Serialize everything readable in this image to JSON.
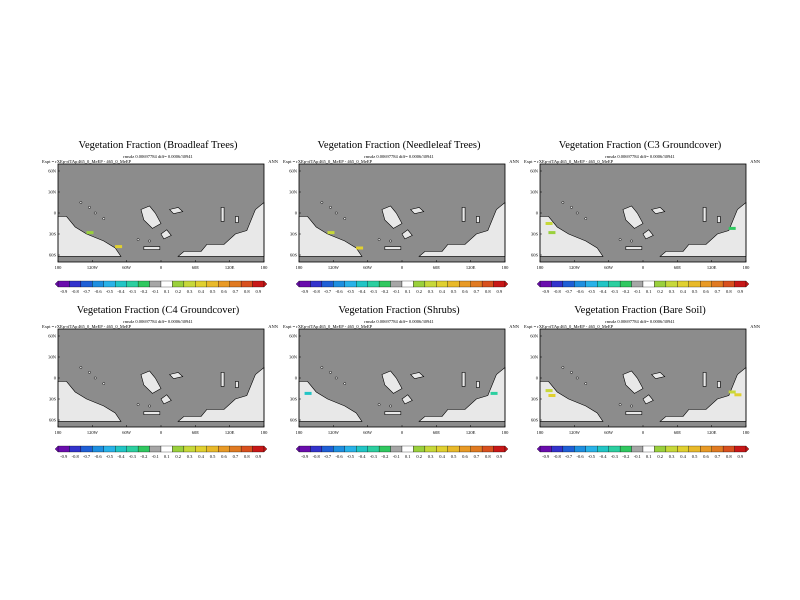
{
  "chart_data": [
    {
      "type": "heatmap",
      "title": "Vegetation Fraction (Broadleaf Trees)",
      "subtitle": "rmsdz 0.00697784 diff= 0.0006/30941",
      "expt": "Expt = rXEp-rfTAp",
      "run": "465_0_MeEP - 465_0_MeEP",
      "season": "ANN",
      "xticks": [
        "180",
        "120W",
        "60W",
        "0",
        "60E",
        "120E",
        "180"
      ],
      "yticks": [
        "60N",
        "30N",
        "0",
        "30S",
        "60S"
      ],
      "colorbar_labels": [
        "-0.9",
        "-0.8",
        "-0.7",
        "-0.6",
        "-0.5",
        "-0.4",
        "-0.3",
        "-0.2",
        "-0.1",
        "0.1",
        "0.2",
        "0.3",
        "0.4",
        "0.5",
        "0.6",
        "0.7",
        "0.8",
        "0.9"
      ],
      "highlights": [
        {
          "lon": -125,
          "lat": -28,
          "value": 0.2
        },
        {
          "lon": -75,
          "lat": -48,
          "value": 0.4
        }
      ]
    },
    {
      "type": "heatmap",
      "title": "Vegetation Fraction (Needleleaf Trees)",
      "subtitle": "rmsdz 0.00697784 diff= 0.0006/30941",
      "expt": "Expt = rXEp-rfTAp",
      "run": "465_0_MeEP - 465_0_MeEP",
      "season": "ANN",
      "xticks": [
        "180",
        "120W",
        "60W",
        "0",
        "60E",
        "120E",
        "180"
      ],
      "yticks": [
        "60N",
        "30N",
        "0",
        "30S",
        "60S"
      ],
      "colorbar_labels": [
        "-0.9",
        "-0.8",
        "-0.7",
        "-0.6",
        "-0.5",
        "-0.4",
        "-0.3",
        "-0.2",
        "-0.1",
        "0.1",
        "0.2",
        "0.3",
        "0.4",
        "0.5",
        "0.6",
        "0.7",
        "0.8",
        "0.9"
      ],
      "highlights": [
        {
          "lon": -125,
          "lat": -28,
          "value": 0.3
        },
        {
          "lon": -75,
          "lat": -50,
          "value": 0.4
        }
      ]
    },
    {
      "type": "heatmap",
      "title": "Vegetation Fraction (C3 Groundcover)",
      "subtitle": "rmsdz 0.00697784 diff= 0.0006/30941",
      "expt": "Expt = rXEp-rfTAp",
      "run": "465_0_MeEP - 465_0_MeEP",
      "season": "ANN",
      "xticks": [
        "180",
        "120W",
        "60W",
        "0",
        "60E",
        "120E",
        "180"
      ],
      "yticks": [
        "60N",
        "30N",
        "0",
        "30S",
        "60S"
      ],
      "colorbar_labels": [
        "-0.9",
        "-0.8",
        "-0.7",
        "-0.6",
        "-0.5",
        "-0.4",
        "-0.3",
        "-0.2",
        "-0.1",
        "0.1",
        "0.2",
        "0.3",
        "0.4",
        "0.5",
        "0.6",
        "0.7",
        "0.8",
        "0.9"
      ],
      "highlights": [
        {
          "lon": -165,
          "lat": -15,
          "value": 0.3
        },
        {
          "lon": -160,
          "lat": -28,
          "value": 0.2
        },
        {
          "lon": 155,
          "lat": -22,
          "value": -0.2
        }
      ]
    },
    {
      "type": "heatmap",
      "title": "Vegetation Fraction (C4 Groundcover)",
      "subtitle": "rmsdz 0.00697784 diff= 0.0006/30941",
      "expt": "Expt = rXEp-rfTAp",
      "run": "465_0_MeEP - 465_0_MeEP",
      "season": "ANN",
      "xticks": [
        "180",
        "120W",
        "60W",
        "0",
        "60E",
        "120E",
        "180"
      ],
      "yticks": [
        "60N",
        "30N",
        "0",
        "30S",
        "60S"
      ],
      "colorbar_labels": [
        "-0.9",
        "-0.8",
        "-0.7",
        "-0.6",
        "-0.5",
        "-0.4",
        "-0.3",
        "-0.2",
        "-0.1",
        "0.1",
        "0.2",
        "0.3",
        "0.4",
        "0.5",
        "0.6",
        "0.7",
        "0.8",
        "0.9"
      ],
      "highlights": []
    },
    {
      "type": "heatmap",
      "title": "Vegetation Fraction (Shrubs)",
      "subtitle": "rmsdz 0.00697784 diff= 0.0006/30941",
      "expt": "Expt = rXEp-rfTAp",
      "run": "465_0_MeEP - 465_0_MeEP",
      "season": "ANN",
      "xticks": [
        "180",
        "120W",
        "60W",
        "0",
        "60E",
        "120E",
        "180"
      ],
      "yticks": [
        "60N",
        "30N",
        "0",
        "30S",
        "60S"
      ],
      "colorbar_labels": [
        "-0.9",
        "-0.8",
        "-0.7",
        "-0.6",
        "-0.5",
        "-0.4",
        "-0.3",
        "-0.2",
        "-0.1",
        "0.1",
        "0.2",
        "0.3",
        "0.4",
        "0.5",
        "0.6",
        "0.7",
        "0.8",
        "0.9"
      ],
      "highlights": [
        {
          "lon": -165,
          "lat": -22,
          "value": -0.4
        },
        {
          "lon": 160,
          "lat": -22,
          "value": -0.3
        }
      ]
    },
    {
      "type": "heatmap",
      "title": "Vegetation Fraction (Bare Soil)",
      "subtitle": "rmsdz 0.00697784 diff= 0.0006/30941",
      "expt": "Expt = rXEp-rfTAp",
      "run": "465_0_MeEP - 465_0_MeEP",
      "season": "ANN",
      "xticks": [
        "180",
        "120W",
        "60W",
        "0",
        "60E",
        "120E",
        "180"
      ],
      "yticks": [
        "60N",
        "30N",
        "0",
        "30S",
        "60S"
      ],
      "colorbar_labels": [
        "-0.9",
        "-0.8",
        "-0.7",
        "-0.6",
        "-0.5",
        "-0.4",
        "-0.3",
        "-0.2",
        "-0.1",
        "0.1",
        "0.2",
        "0.3",
        "0.4",
        "0.5",
        "0.6",
        "0.7",
        "0.8",
        "0.9"
      ],
      "highlights": [
        {
          "lon": -165,
          "lat": -18,
          "value": 0.3
        },
        {
          "lon": -160,
          "lat": -25,
          "value": 0.4
        },
        {
          "lon": 155,
          "lat": -20,
          "value": 0.3
        },
        {
          "lon": 165,
          "lat": -24,
          "value": 0.4
        }
      ]
    }
  ],
  "colors": {
    "ocean": "#8c8c8c",
    "land": "#e8e8e8",
    "colorbar": [
      "#6a0dad",
      "#3333cc",
      "#1f5fd6",
      "#1e8fe0",
      "#29b2e8",
      "#22c5c5",
      "#2ccfa0",
      "#30c860",
      "#a6a6a6",
      "#ffffff",
      "#9ad03c",
      "#c7d83a",
      "#e0d030",
      "#e8b92a",
      "#e89a26",
      "#e07a22",
      "#d8501e",
      "#c81818"
    ]
  }
}
